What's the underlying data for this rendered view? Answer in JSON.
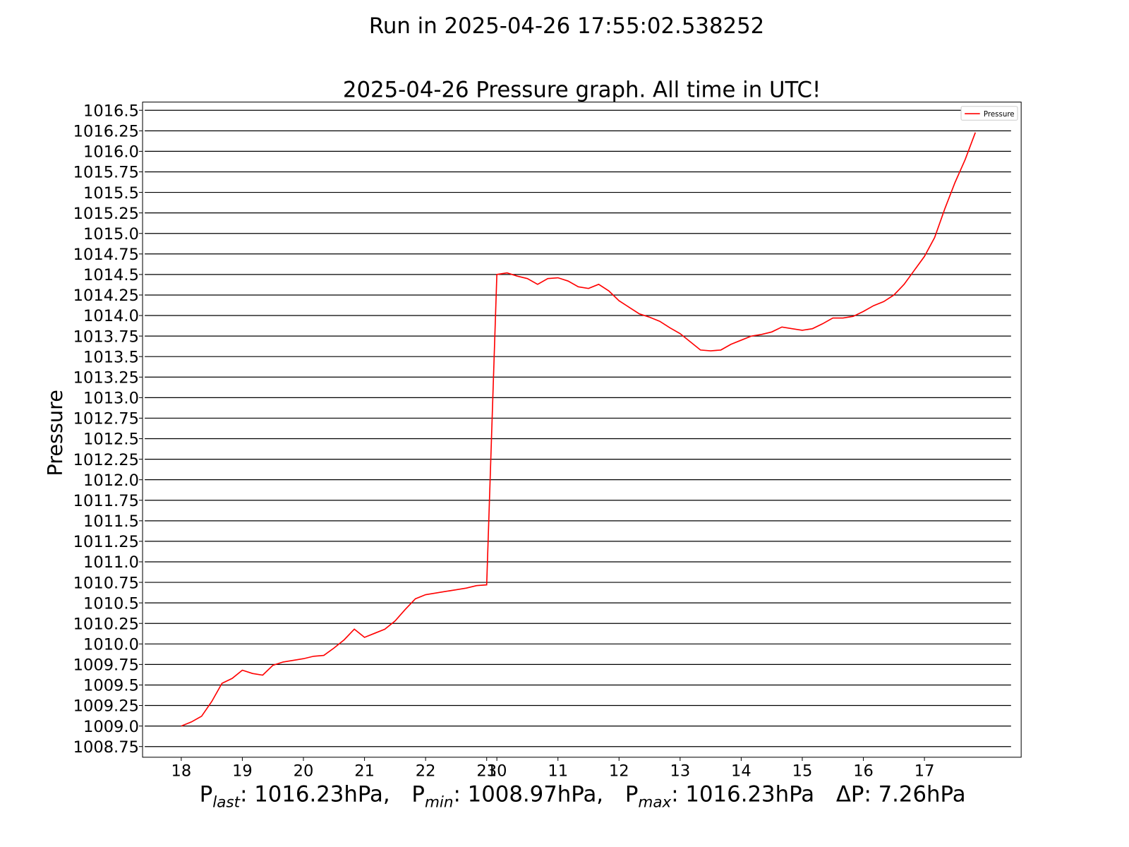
{
  "chart_data": {
    "type": "line",
    "suptitle": "Run in 2025-04-26 17:55:02.538252",
    "title": "2025-04-26 Pressure graph. All time in UTC!",
    "ylabel": "Pressure",
    "legend": "upper right",
    "grid": true,
    "xlim": [
      -3.8,
      82.5
    ],
    "ylim": [
      1008.62,
      1016.6
    ],
    "xticks": [
      {
        "value": 0,
        "label": "18"
      },
      {
        "value": 6,
        "label": "19"
      },
      {
        "value": 12,
        "label": "20"
      },
      {
        "value": 18,
        "label": "21"
      },
      {
        "value": 24,
        "label": "22"
      },
      {
        "value": 30,
        "label": "23"
      },
      {
        "value": 31,
        "label": "10"
      },
      {
        "value": 37,
        "label": "11"
      },
      {
        "value": 43,
        "label": "12"
      },
      {
        "value": 49,
        "label": "13"
      },
      {
        "value": 55,
        "label": "14"
      },
      {
        "value": 61,
        "label": "15"
      },
      {
        "value": 67,
        "label": "16"
      },
      {
        "value": 73,
        "label": "17"
      }
    ],
    "yticks": [
      1008.75,
      {
        "value": 1009,
        "label": "1009.0"
      },
      1009.25,
      1009.5,
      1009.75,
      {
        "value": 1010,
        "label": "1010.0"
      },
      1010.25,
      1010.5,
      1010.75,
      {
        "value": 1011,
        "label": "1011.0"
      },
      1011.25,
      1011.5,
      1011.75,
      {
        "value": 1012,
        "label": "1012.0"
      },
      1012.25,
      1012.5,
      1012.75,
      {
        "value": 1013,
        "label": "1013.0"
      },
      1013.25,
      1013.5,
      1013.75,
      {
        "value": 1014,
        "label": "1014.0"
      },
      1014.25,
      1014.5,
      1014.75,
      {
        "value": 1015,
        "label": "1015.0"
      },
      1015.25,
      1015.5,
      1015.75,
      {
        "value": 1016,
        "label": "1016.0"
      },
      1016.25,
      1016.5
    ],
    "series": [
      {
        "name": "Pressure",
        "color": "#ff0000",
        "values": [
          1009.0,
          1009.05,
          1009.12,
          1009.3,
          1009.52,
          1009.58,
          1009.68,
          1009.64,
          1009.62,
          1009.74,
          1009.78,
          1009.8,
          1009.82,
          1009.85,
          1009.86,
          1009.95,
          1010.05,
          1010.18,
          1010.08,
          1010.13,
          1010.18,
          1010.28,
          1010.42,
          1010.55,
          1010.6,
          1010.62,
          1010.64,
          1010.66,
          1010.68,
          1010.71,
          1010.72,
          1014.5,
          1014.52,
          1014.48,
          1014.45,
          1014.38,
          1014.45,
          1014.46,
          1014.42,
          1014.35,
          1014.33,
          1014.38,
          1014.3,
          1014.18,
          1014.1,
          1014.02,
          1013.98,
          1013.93,
          1013.85,
          1013.78,
          1013.68,
          1013.58,
          1013.57,
          1013.58,
          1013.65,
          1013.7,
          1013.75,
          1013.77,
          1013.8,
          1013.86,
          1013.84,
          1013.82,
          1013.84,
          1013.9,
          1013.97,
          1013.97,
          1013.99,
          1014.05,
          1014.12,
          1014.17,
          1014.25,
          1014.38,
          1014.55,
          1014.72,
          1014.95,
          1015.3,
          1015.62,
          1015.9,
          1016.23
        ]
      }
    ],
    "footer": [
      {
        "symbol": "P",
        "sub": "last",
        "text": ": 1016.23hPa,"
      },
      {
        "symbol": "P",
        "sub": "min",
        "text": ": 1008.97hPa,"
      },
      {
        "symbol": "P",
        "sub": "max",
        "text": ": 1016.23hPa"
      },
      {
        "symbol": "ΔP",
        "text": ": 7.26hPa"
      }
    ]
  }
}
